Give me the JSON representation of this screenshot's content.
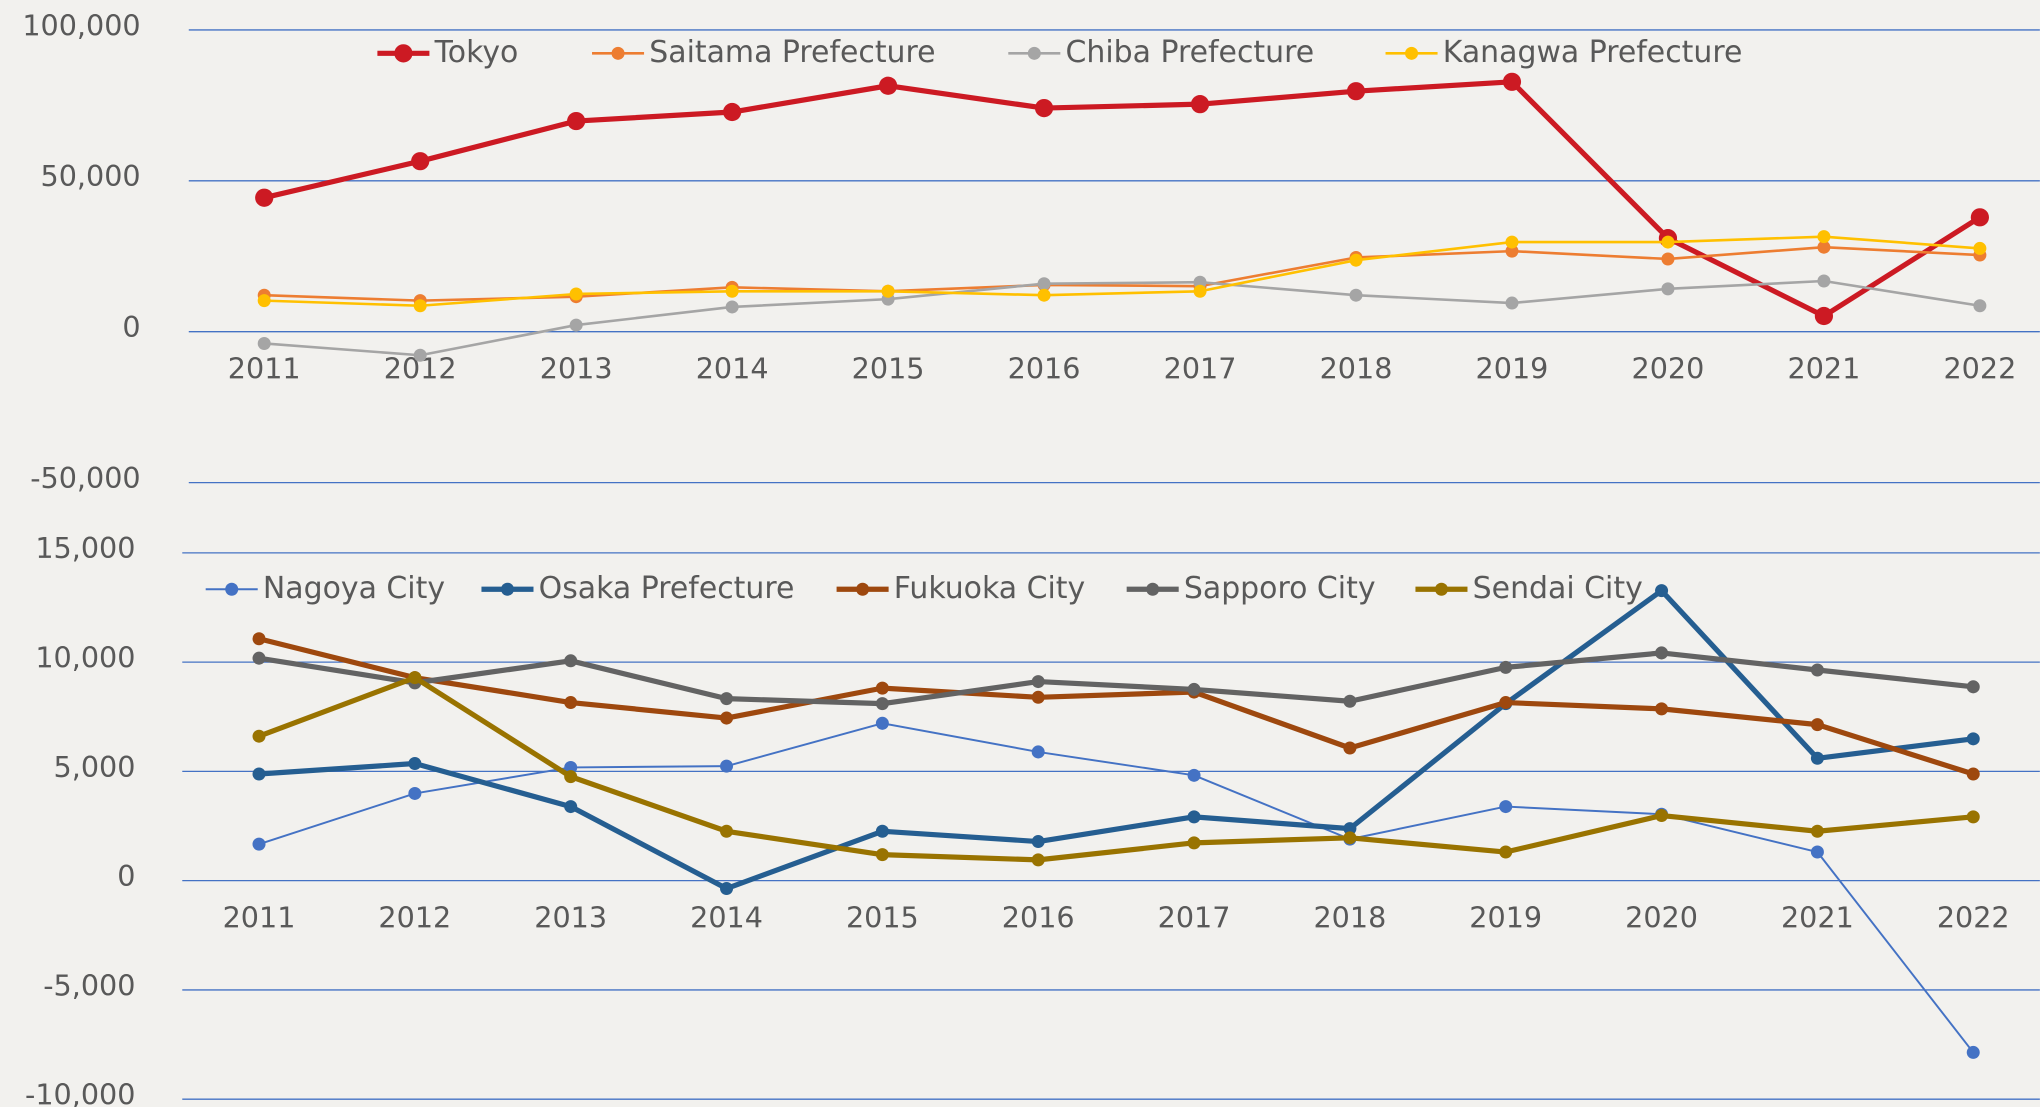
{
  "chart_data": [
    {
      "type": "line",
      "categories": [
        "2011",
        "2012",
        "2013",
        "2014",
        "2015",
        "2016",
        "2017",
        "2018",
        "2019",
        "2020",
        "2021",
        "2022"
      ],
      "series": [
        {
          "name": "Tokyo",
          "color": "#cc1a23",
          "values": [
            44400,
            56500,
            69800,
            72800,
            81500,
            74100,
            75400,
            79700,
            82800,
            31000,
            5200,
            37900
          ]
        },
        {
          "name": "Saitama Prefecture",
          "color": "#ed7d31",
          "values": [
            12100,
            10300,
            11600,
            14700,
            13400,
            15500,
            15100,
            24600,
            26700,
            24100,
            28000,
            25400
          ]
        },
        {
          "name": "Chiba Prefecture",
          "color": "#a5a5a5",
          "values": [
            -3900,
            -7800,
            2200,
            8200,
            10800,
            15900,
            16400,
            12100,
            9500,
            14200,
            16800,
            8600
          ]
        },
        {
          "name": "Kanagwa Prefecture",
          "color": "#ffc000",
          "values": [
            10300,
            8600,
            12500,
            13400,
            13400,
            12100,
            13400,
            23700,
            29700,
            29700,
            31500,
            27600
          ]
        }
      ],
      "ylim": [
        -50000,
        100000
      ],
      "yticks": [
        {
          "value": -50000,
          "label": "-50,000"
        },
        0,
        {
          "value": 50000,
          "label": "50,000"
        },
        {
          "value": 100000,
          "label": "100,000"
        }
      ],
      "grid": true
    },
    {
      "type": "line",
      "categories": [
        "2011",
        "2012",
        "2013",
        "2014",
        "2015",
        "2016",
        "2017",
        "2018",
        "2019",
        "2020",
        "2021",
        "2022"
      ],
      "series": [
        {
          "name": "Nagoya City",
          "color": "#4472c4",
          "values": [
            1670,
            3990,
            5180,
            5240,
            7200,
            5890,
            4820,
            1900,
            3390,
            3040,
            1310,
            -7860
          ]
        },
        {
          "name": "Osaka Prefecture",
          "color": "#255e91",
          "values": [
            4880,
            5360,
            3390,
            -360,
            2260,
            1790,
            2920,
            2380,
            8100,
            13270,
            5600,
            6490
          ]
        },
        {
          "name": "Fukuoka City",
          "color": "#9e480e",
          "values": [
            11070,
            9290,
            8150,
            7440,
            8810,
            8390,
            8630,
            6070,
            8150,
            7860,
            7140,
            4880
          ]
        },
        {
          "name": "Sapporo City",
          "color": "#636363",
          "values": [
            10180,
            9050,
            10060,
            8330,
            8100,
            9110,
            8750,
            8210,
            9760,
            10420,
            9640,
            8870
          ]
        },
        {
          "name": "Sendai City",
          "color": "#997300",
          "values": [
            6610,
            9290,
            4760,
            2260,
            1190,
            950,
            1730,
            1960,
            1310,
            2980,
            2260,
            2920
          ]
        }
      ],
      "ylim": [
        -10000,
        15000
      ],
      "yticks": [
        {
          "value": -10000,
          "label": "-10,000"
        },
        {
          "value": -5000,
          "label": "-5,000"
        },
        0,
        {
          "value": 5000,
          "label": "5,000"
        },
        {
          "value": 10000,
          "label": "10,000"
        },
        {
          "value": 15000,
          "label": "15,000"
        }
      ],
      "grid": true
    }
  ]
}
